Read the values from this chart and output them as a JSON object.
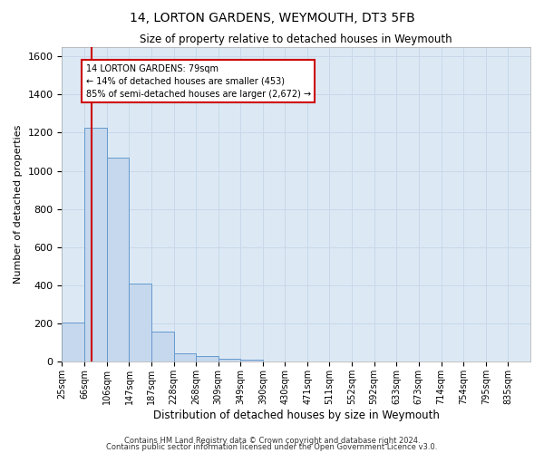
{
  "title": "14, LORTON GARDENS, WEYMOUTH, DT3 5FB",
  "subtitle": "Size of property relative to detached houses in Weymouth",
  "xlabel": "Distribution of detached houses by size in Weymouth",
  "ylabel": "Number of detached properties",
  "bins": [
    "25sqm",
    "66sqm",
    "106sqm",
    "147sqm",
    "187sqm",
    "228sqm",
    "268sqm",
    "309sqm",
    "349sqm",
    "390sqm",
    "430sqm",
    "471sqm",
    "511sqm",
    "552sqm",
    "592sqm",
    "633sqm",
    "673sqm",
    "714sqm",
    "754sqm",
    "795sqm",
    "835sqm"
  ],
  "bar_edges": [
    25,
    66,
    106,
    147,
    187,
    228,
    268,
    309,
    349,
    390,
    430,
    471,
    511,
    552,
    592,
    633,
    673,
    714,
    754,
    795,
    835,
    876
  ],
  "bar_values": [
    205,
    1225,
    1070,
    410,
    160,
    45,
    28,
    18,
    12,
    0,
    0,
    0,
    0,
    0,
    0,
    0,
    0,
    0,
    0,
    0,
    0
  ],
  "bar_color": "#c5d8ee",
  "bar_edge_color": "#6699cc",
  "grid_color": "#c8d8e8",
  "background_color": "#dce9f5",
  "property_line_x": 79,
  "property_line_color": "#cc0000",
  "annotation_line1": "14 LORTON GARDENS: 79sqm",
  "annotation_line2": "← 14% of detached houses are smaller (453)",
  "annotation_line3": "85% of semi-detached houses are larger (2,672) →",
  "annotation_box_color": "#cc0000",
  "ylim": [
    0,
    1650
  ],
  "yticks": [
    0,
    200,
    400,
    600,
    800,
    1000,
    1200,
    1400,
    1600
  ],
  "footnote1": "Contains HM Land Registry data © Crown copyright and database right 2024.",
  "footnote2": "Contains public sector information licensed under the Open Government Licence v3.0."
}
